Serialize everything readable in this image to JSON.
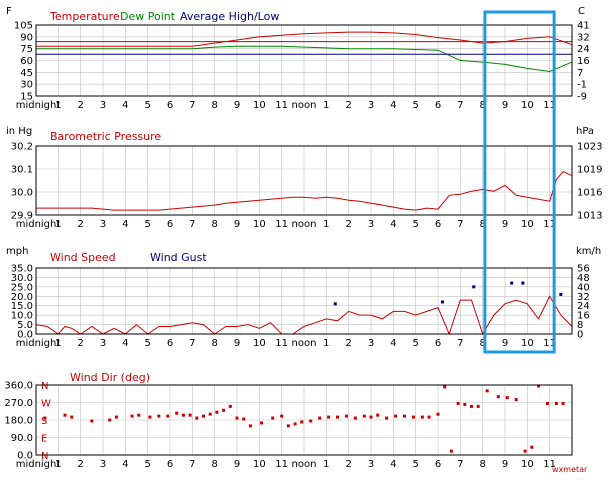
{
  "x_labels": [
    "midnight",
    "1",
    "2",
    "3",
    "4",
    "5",
    "6",
    "7",
    "8",
    "9",
    "10",
    "11",
    "noon",
    "1",
    "2",
    "3",
    "4",
    "5",
    "6",
    "7",
    "8",
    "9",
    "10",
    "11"
  ],
  "colors": {
    "red": "#cc0000",
    "green": "#008800",
    "navy": "#000080",
    "grid": "#c0c0c0",
    "highlight": "#1e9be0",
    "plot_bg": "#ffffff",
    "border": "#000000"
  },
  "chart_data": [
    {
      "type": "line",
      "panel": "temperature",
      "left_unit": "F",
      "right_unit": "C",
      "legend": [
        "Temperature",
        "Dew Point",
        "Average High/Low"
      ],
      "y_ticks": [
        "105",
        "90",
        "75",
        "60",
        "45",
        "30",
        "15"
      ],
      "right_ticks": [
        "41",
        "32",
        "24",
        "16",
        "7",
        "-1",
        "-9"
      ],
      "ylim": [
        15,
        105
      ],
      "x": [
        0,
        1,
        2,
        3,
        4,
        5,
        6,
        7,
        8,
        9,
        10,
        11,
        12,
        13,
        14,
        15,
        16,
        17,
        18,
        19,
        20,
        21,
        22,
        23,
        24
      ],
      "series": [
        {
          "name": "Temperature",
          "color": "#cc0000",
          "values": [
            78,
            78,
            78,
            78,
            78,
            78,
            78,
            78,
            82,
            86,
            90,
            92,
            94,
            95,
            96,
            96,
            95,
            93,
            89,
            86,
            82,
            84,
            88,
            90,
            80
          ]
        },
        {
          "name": "Dew Point",
          "color": "#008800",
          "values": [
            75,
            75,
            75,
            75,
            75,
            75,
            75,
            75,
            77,
            78,
            78,
            78,
            77,
            76,
            75,
            75,
            75,
            74,
            73,
            60,
            58,
            55,
            50,
            46,
            58
          ]
        },
        {
          "name": "Average High/Low",
          "color": "#000080",
          "values": [
            68,
            68,
            68,
            68,
            68,
            68,
            68,
            68,
            68,
            68,
            68,
            68,
            68,
            68,
            68,
            68,
            68,
            68,
            68,
            68,
            68,
            68,
            68,
            68,
            68
          ]
        },
        {
          "name": "",
          "color": "#cc0000",
          "values": [
            84,
            84,
            84,
            84,
            84,
            84,
            84,
            84,
            84,
            84,
            84,
            84,
            84,
            84,
            84,
            84,
            84,
            84,
            84,
            84,
            84,
            84,
            84,
            84,
            84
          ]
        }
      ]
    },
    {
      "type": "line",
      "panel": "pressure",
      "left_unit": "in Hg",
      "right_unit": "hPa",
      "legend": [
        "Barometric Pressure"
      ],
      "y_ticks": [
        "30.2",
        "30.1",
        "30.0",
        "29.9"
      ],
      "right_ticks": [
        "1023",
        "1019",
        "1016",
        "1013"
      ],
      "ylim": [
        29.9,
        30.25
      ],
      "x": [
        0,
        0.5,
        1,
        1.5,
        2,
        2.5,
        3,
        3.5,
        4,
        4.5,
        5,
        5.5,
        6,
        6.5,
        7,
        7.5,
        8,
        8.5,
        9,
        9.5,
        10,
        10.5,
        11,
        11.5,
        12,
        12.5,
        13,
        13.5,
        14,
        14.5,
        15,
        15.5,
        16,
        16.5,
        17,
        17.5,
        18,
        18.5,
        19,
        19.5,
        20,
        20.5,
        21,
        21.5,
        22,
        22.5,
        23,
        23.3,
        23.6,
        24
      ],
      "series": [
        {
          "name": "Barometric Pressure",
          "color": "#cc0000",
          "values": [
            29.935,
            29.935,
            29.935,
            29.935,
            29.935,
            29.935,
            29.93,
            29.925,
            29.925,
            29.925,
            29.925,
            29.925,
            29.93,
            29.935,
            29.94,
            29.945,
            29.95,
            29.96,
            29.965,
            29.97,
            29.975,
            29.98,
            29.985,
            29.99,
            29.99,
            29.985,
            29.99,
            29.985,
            29.975,
            29.97,
            29.96,
            29.95,
            29.94,
            29.93,
            29.925,
            29.935,
            29.93,
            30.0,
            30.005,
            30.02,
            30.03,
            30.02,
            30.05,
            30.0,
            29.99,
            29.98,
            29.97,
            30.08,
            30.12,
            30.1
          ]
        }
      ]
    },
    {
      "type": "line",
      "panel": "wind",
      "left_unit": "mph",
      "right_unit": "km/h",
      "legend": [
        "Wind Speed",
        "Wind Gust"
      ],
      "y_ticks": [
        "35.0",
        "30.0",
        "25.0",
        "20.0",
        "15.0",
        "10.0",
        "5.0",
        "0.0"
      ],
      "right_ticks": [
        "56",
        "48",
        "40",
        "32",
        "24",
        "16",
        "8",
        "0"
      ],
      "ylim": [
        0,
        35
      ],
      "x": [
        0,
        0.5,
        1,
        1.3,
        1.6,
        2,
        2.5,
        3,
        3.5,
        4,
        4.5,
        5,
        5.5,
        6,
        6.5,
        7,
        7.5,
        8,
        8.5,
        9,
        9.5,
        10,
        10.5,
        11,
        11.5,
        12,
        12.5,
        13,
        13.5,
        14,
        14.5,
        15,
        15.5,
        16,
        16.5,
        17,
        17.5,
        18,
        18.5,
        19,
        19.5,
        20,
        20.5,
        21,
        21.5,
        22,
        22.5,
        23,
        23.5,
        24
      ],
      "series": [
        {
          "name": "Wind Speed",
          "color": "#cc0000",
          "values": [
            5,
            4,
            0,
            4,
            3,
            0,
            4,
            0,
            3,
            0,
            5,
            0,
            4,
            4,
            5,
            6,
            5,
            0,
            4,
            4,
            5,
            3,
            6,
            0,
            0,
            4,
            6,
            8,
            7,
            12,
            10,
            10,
            8,
            12,
            12,
            10,
            12,
            14,
            0,
            18,
            18,
            0,
            10,
            16,
            18,
            16,
            8,
            20,
            10,
            4
          ]
        },
        {
          "name": "Wind Gust",
          "color": "#000080",
          "type": "scatter",
          "x": [
            13.4,
            18.2,
            19.6,
            21.3,
            21.8,
            23.5
          ],
          "values": [
            16,
            17,
            25,
            27,
            27,
            21
          ]
        }
      ]
    },
    {
      "type": "scatter",
      "panel": "winddir",
      "legend": [
        "Wind Dir (deg)"
      ],
      "y_ticks": [
        "360.0",
        "270.0",
        "180.0",
        "90.0",
        "0.0"
      ],
      "compass": [
        "N",
        "W",
        "S",
        "E",
        "N"
      ],
      "ylim": [
        0,
        360
      ],
      "footnote": "wxmetar",
      "series": [
        {
          "name": "Wind Dir (deg)",
          "color": "#cc0000",
          "x": [
            0.4,
            1.3,
            1.6,
            2.5,
            3.3,
            3.6,
            4.3,
            4.6,
            5.1,
            5.5,
            5.9,
            6.3,
            6.6,
            6.9,
            7.2,
            7.5,
            7.8,
            8.1,
            8.4,
            8.7,
            9.0,
            9.3,
            9.6,
            10.1,
            10.6,
            11.0,
            11.3,
            11.6,
            11.9,
            12.3,
            12.7,
            13.1,
            13.5,
            13.9,
            14.3,
            14.7,
            15.0,
            15.3,
            15.7,
            16.1,
            16.5,
            16.9,
            17.3,
            17.6,
            18.0,
            18.3,
            18.6,
            18.9,
            19.2,
            19.5,
            19.8,
            20.2,
            20.7,
            21.1,
            21.5,
            21.9,
            22.2,
            22.5,
            22.9,
            23.3,
            23.6
          ],
          "values": [
            190,
            205,
            195,
            175,
            180,
            195,
            200,
            205,
            195,
            200,
            200,
            215,
            205,
            205,
            190,
            200,
            210,
            220,
            230,
            250,
            190,
            185,
            150,
            165,
            190,
            200,
            150,
            160,
            170,
            175,
            190,
            195,
            195,
            200,
            190,
            200,
            195,
            205,
            190,
            200,
            200,
            195,
            195,
            195,
            210,
            350,
            20,
            265,
            260,
            250,
            250,
            330,
            300,
            295,
            285,
            20,
            40,
            355,
            265,
            265,
            265
          ]
        }
      ]
    }
  ]
}
